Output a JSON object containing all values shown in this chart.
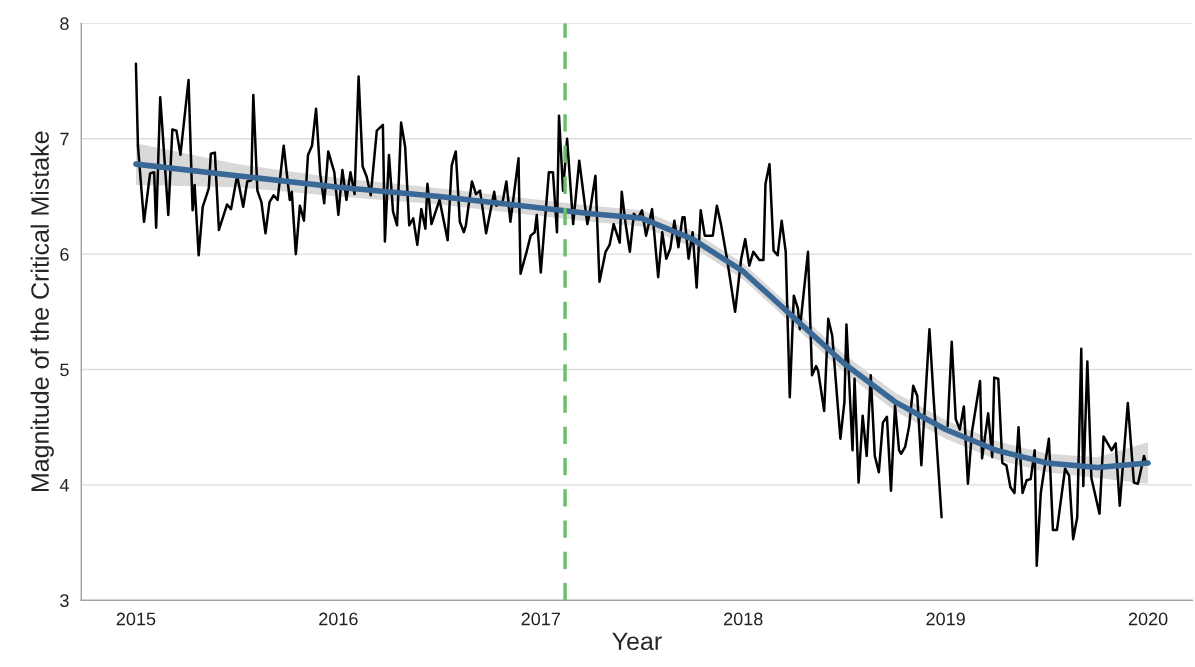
{
  "chart_data": {
    "type": "line",
    "xlabel": "Year",
    "ylabel": "Magnitude of the Critical Mistake",
    "xlim": [
      2014.73,
      2020.22
    ],
    "ylim": [
      3,
      8
    ],
    "xticks": [
      2015,
      2016,
      2017,
      2018,
      2019,
      2020
    ],
    "yticks": [
      3,
      4,
      5,
      6,
      7,
      8
    ],
    "grid": "y",
    "marker": "none",
    "line_style": "solid",
    "ref_lines": [
      {
        "axis": "x",
        "value": 2017.12,
        "color": "#6bbf6b",
        "line_style": "dashed"
      }
    ],
    "series": [
      {
        "color": "#000000",
        "x": [
          2015.0,
          2015.01,
          2015.04,
          2015.07,
          2015.09,
          2015.1,
          2015.12,
          2015.16,
          2015.18,
          2015.2,
          2015.22,
          2015.26,
          2015.28,
          2015.29,
          2015.31,
          2015.33,
          2015.36,
          2015.37,
          2015.39,
          2015.41,
          2015.45,
          2015.47,
          2015.5,
          2015.53,
          2015.55,
          2015.57,
          2015.58,
          2015.6,
          2015.62,
          2015.64,
          2015.66,
          2015.68,
          2015.7,
          2015.73,
          2015.76,
          2015.77,
          2015.79,
          2015.81,
          2015.83,
          2015.85,
          2015.87,
          2015.89,
          2015.91,
          2015.93,
          2015.95,
          2015.98,
          2016.0,
          2016.02,
          2016.04,
          2016.06,
          2016.08,
          2016.1,
          2016.12,
          2016.14,
          2016.16,
          2016.19,
          2016.22,
          2016.23,
          2016.25,
          2016.27,
          2016.29,
          2016.31,
          2016.33,
          2016.35,
          2016.37,
          2016.39,
          2016.41,
          2016.43,
          2016.44,
          2016.46,
          2016.5,
          2016.54,
          2016.56,
          2016.58,
          2016.6,
          2016.62,
          2016.63,
          2016.66,
          2016.68,
          2016.7,
          2016.73,
          2016.77,
          2016.78,
          2016.81,
          2016.83,
          2016.85,
          2016.89,
          2016.9,
          2016.93,
          2016.95,
          2016.97,
          2016.98,
          2017.0,
          2017.04,
          2017.06,
          2017.08,
          2017.09,
          2017.11,
          2017.13,
          2017.16,
          2017.19,
          2017.23,
          2017.24,
          2017.27,
          2017.29,
          2017.32,
          2017.34,
          2017.36,
          2017.39,
          2017.4,
          2017.42,
          2017.44,
          2017.46,
          2017.48,
          2017.5,
          2017.52,
          2017.55,
          2017.58,
          2017.6,
          2017.62,
          2017.64,
          2017.66,
          2017.68,
          2017.7,
          2017.71,
          2017.73,
          2017.75,
          2017.77,
          2017.79,
          2017.81,
          2017.85,
          2017.87,
          2017.89,
          2017.92,
          2017.96,
          2017.99,
          2018.01,
          2018.03,
          2018.05,
          2018.08,
          2018.1,
          2018.11,
          2018.13,
          2018.15,
          2018.17,
          2018.19,
          2018.21,
          2018.23,
          2018.25,
          2018.27,
          2018.28,
          2018.32,
          2018.34,
          2018.36,
          2018.37,
          2018.4,
          2018.42,
          2018.44,
          2018.48,
          2018.5,
          2018.51,
          2018.54,
          2018.55,
          2018.57,
          2018.59,
          2018.61,
          2018.63,
          2018.65,
          2018.67,
          2018.69,
          2018.71,
          2018.73,
          2018.75,
          2018.77,
          2018.78,
          2018.8,
          2018.82,
          2018.84,
          2018.86,
          2018.88,
          2018.92,
          2018.94,
          2018.98,
          2019.0,
          2019.01,
          2019.03,
          2019.05,
          2019.07,
          2019.09,
          2019.11,
          2019.13,
          2019.17,
          2019.18,
          2019.21,
          2019.23,
          2019.24,
          2019.26,
          2019.28,
          2019.3,
          2019.32,
          2019.34,
          2019.36,
          2019.38,
          2019.4,
          2019.42,
          2019.44,
          2019.45,
          2019.47,
          2019.51,
          2019.53,
          2019.55,
          2019.59,
          2019.61,
          2019.63,
          2019.65,
          2019.67,
          2019.68,
          2019.7,
          2019.72,
          2019.76,
          2019.78,
          2019.82,
          2019.84,
          2019.86,
          2019.9,
          2019.93,
          2019.95,
          2019.98,
          2019.99
        ],
        "values": [
          7.65,
          6.94,
          6.28,
          6.7,
          6.71,
          6.23,
          7.36,
          6.34,
          7.08,
          7.07,
          6.86,
          7.51,
          6.38,
          6.6,
          5.99,
          6.41,
          6.57,
          6.87,
          6.88,
          6.21,
          6.43,
          6.39,
          6.68,
          6.41,
          6.63,
          6.64,
          7.38,
          6.55,
          6.45,
          6.18,
          6.45,
          6.51,
          6.47,
          6.94,
          6.47,
          6.54,
          6.0,
          6.42,
          6.29,
          6.86,
          6.94,
          7.26,
          6.7,
          6.44,
          6.89,
          6.71,
          6.34,
          6.73,
          6.47,
          6.71,
          6.52,
          7.54,
          6.76,
          6.67,
          6.51,
          7.07,
          7.12,
          6.11,
          6.86,
          6.37,
          6.25,
          7.14,
          6.93,
          6.25,
          6.31,
          6.08,
          6.39,
          6.22,
          6.61,
          6.26,
          6.47,
          6.12,
          6.77,
          6.89,
          6.28,
          6.19,
          6.25,
          6.63,
          6.52,
          6.55,
          6.18,
          6.54,
          6.42,
          6.44,
          6.63,
          6.28,
          6.83,
          5.83,
          6.02,
          6.16,
          6.19,
          6.34,
          5.84,
          6.71,
          6.71,
          6.19,
          7.2,
          6.55,
          7.0,
          6.26,
          6.81,
          6.26,
          6.34,
          6.68,
          5.76,
          6.02,
          6.08,
          6.26,
          6.1,
          6.54,
          6.25,
          6.02,
          6.35,
          6.31,
          6.38,
          6.16,
          6.39,
          5.8,
          6.19,
          5.96,
          6.05,
          6.29,
          6.06,
          6.32,
          6.32,
          5.96,
          6.19,
          5.71,
          6.38,
          6.16,
          6.16,
          6.42,
          6.26,
          5.96,
          5.5,
          5.96,
          6.13,
          5.9,
          6.02,
          5.95,
          5.95,
          6.61,
          6.78,
          6.03,
          5.99,
          6.29,
          6.02,
          4.76,
          5.64,
          5.53,
          5.35,
          6.02,
          4.95,
          5.03,
          4.99,
          4.64,
          5.44,
          5.29,
          4.4,
          4.72,
          5.39,
          4.3,
          4.92,
          4.02,
          4.6,
          4.25,
          4.95,
          4.25,
          4.11,
          4.54,
          4.59,
          3.95,
          4.69,
          4.3,
          4.27,
          4.33,
          4.51,
          4.86,
          4.77,
          4.17,
          5.35,
          4.77,
          3.72,
          null,
          4.51,
          5.24,
          4.57,
          4.48,
          4.68,
          4.01,
          4.46,
          4.9,
          4.23,
          4.62,
          4.24,
          4.93,
          4.92,
          4.19,
          4.17,
          3.98,
          3.93,
          4.5,
          3.93,
          4.04,
          4.05,
          4.3,
          3.3,
          3.93,
          4.4,
          3.61,
          3.61,
          4.14,
          4.08,
          3.53,
          3.72,
          5.18,
          3.99,
          5.07,
          4.06,
          3.75,
          4.42,
          4.3,
          4.36,
          3.82,
          4.71,
          4.02,
          4.01,
          4.25,
          4.19
        ]
      },
      {
        "color": "#3a6896",
        "x": [
          2015,
          2015.5,
          2016,
          2016.5,
          2017,
          2017.25,
          2017.5,
          2017.75,
          2018,
          2018.25,
          2018.5,
          2018.75,
          2019,
          2019.25,
          2019.5,
          2019.75,
          2020
        ],
        "values": [
          6.78,
          6.68,
          6.58,
          6.5,
          6.4,
          6.35,
          6.31,
          6.13,
          5.85,
          5.45,
          5.05,
          4.72,
          4.48,
          4.3,
          4.19,
          4.15,
          4.19
        ],
        "lower": [
          6.6,
          6.58,
          6.5,
          6.43,
          6.33,
          6.28,
          6.24,
          6.06,
          5.78,
          5.38,
          4.97,
          4.64,
          4.4,
          4.22,
          4.11,
          4.06,
          4.01
        ],
        "upper": [
          6.96,
          6.78,
          6.66,
          6.57,
          6.47,
          6.42,
          6.38,
          6.2,
          5.92,
          5.52,
          5.13,
          4.8,
          4.56,
          4.38,
          4.27,
          4.24,
          4.37
        ]
      }
    ]
  }
}
